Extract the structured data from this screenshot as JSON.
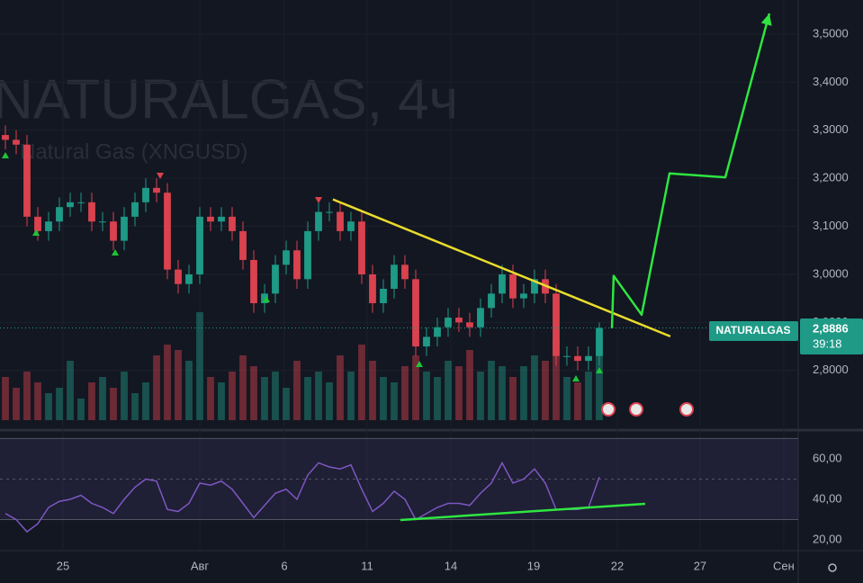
{
  "chart_data": [
    {
      "type": "candlestick",
      "watermark": [
        "NATURALGAS, 4ч",
        "Natural Gas (XNGUSD)"
      ],
      "symbol_tag": "NATURALGAS",
      "last_price_label": "2,8886",
      "countdown": "39:18",
      "up_color": "#1e9a86",
      "down_color": "#d9424e",
      "open": [
        3.29,
        3.28,
        3.27,
        3.12,
        3.09,
        3.11,
        3.14,
        3.15,
        3.15,
        3.11,
        3.11,
        3.07,
        3.12,
        3.15,
        3.18,
        3.17,
        3.01,
        2.98,
        3.0,
        3.12,
        3.11,
        3.12,
        3.09,
        3.03,
        2.94,
        2.96,
        3.02,
        3.05,
        2.99,
        3.09,
        3.13,
        3.13,
        3.09,
        3.11,
        3.0,
        2.94,
        2.97,
        3.02,
        2.99,
        2.85,
        2.87,
        2.89,
        2.91,
        2.9,
        2.89,
        2.93,
        2.96,
        3.0,
        2.95,
        2.96,
        2.99,
        2.96,
        2.83,
        2.83,
        2.82,
        2.83
      ],
      "high": [
        3.31,
        3.3,
        3.29,
        3.14,
        3.13,
        3.16,
        3.17,
        3.17,
        3.17,
        3.13,
        3.13,
        3.14,
        3.17,
        3.2,
        3.2,
        3.19,
        3.03,
        3.02,
        3.14,
        3.14,
        3.14,
        3.14,
        3.11,
        3.05,
        2.98,
        3.04,
        3.07,
        3.07,
        3.11,
        3.15,
        3.15,
        3.15,
        3.13,
        3.13,
        3.02,
        2.99,
        3.04,
        3.04,
        3.01,
        2.89,
        2.91,
        2.93,
        2.93,
        2.92,
        2.95,
        2.98,
        3.02,
        3.02,
        2.98,
        3.01,
        3.01,
        2.98,
        2.85,
        2.85,
        2.85,
        2.9
      ],
      "low": [
        3.26,
        3.25,
        3.1,
        3.07,
        3.07,
        3.09,
        3.12,
        3.13,
        3.09,
        3.09,
        3.05,
        3.05,
        3.1,
        3.13,
        3.15,
        2.99,
        2.96,
        2.96,
        2.98,
        3.09,
        3.09,
        3.07,
        3.01,
        2.92,
        2.92,
        2.94,
        3.0,
        2.97,
        2.97,
        3.07,
        3.11,
        3.07,
        3.07,
        2.98,
        2.92,
        2.92,
        2.95,
        2.97,
        2.83,
        2.83,
        2.85,
        2.87,
        2.88,
        2.87,
        2.87,
        2.91,
        2.94,
        2.93,
        2.93,
        2.94,
        2.94,
        2.81,
        2.81,
        2.8,
        2.8,
        2.81
      ],
      "close": [
        3.28,
        3.27,
        3.12,
        3.09,
        3.11,
        3.14,
        3.15,
        3.15,
        3.11,
        3.11,
        3.07,
        3.12,
        3.15,
        3.18,
        3.17,
        3.01,
        2.98,
        3.0,
        3.12,
        3.11,
        3.12,
        3.09,
        3.03,
        2.94,
        2.96,
        3.02,
        3.05,
        2.99,
        3.09,
        3.13,
        3.13,
        3.09,
        3.11,
        3.0,
        2.94,
        2.97,
        3.02,
        2.99,
        2.85,
        2.87,
        2.89,
        2.91,
        2.9,
        2.89,
        2.93,
        2.96,
        3.0,
        2.95,
        2.96,
        2.99,
        2.96,
        2.83,
        2.83,
        2.82,
        2.83,
        2.8886
      ],
      "volume": [
        40,
        30,
        45,
        35,
        25,
        30,
        55,
        20,
        35,
        40,
        30,
        45,
        25,
        35,
        60,
        70,
        65,
        55,
        100,
        40,
        35,
        45,
        60,
        50,
        40,
        45,
        30,
        55,
        40,
        45,
        35,
        60,
        45,
        70,
        55,
        40,
        35,
        50,
        60,
        45,
        40,
        55,
        50,
        65,
        45,
        55,
        50,
        40,
        50,
        60,
        55,
        75,
        40,
        35,
        45,
        80
      ],
      "vlim": [
        0,
        100
      ],
      "xlim": [
        -0.5,
        73.42
      ],
      "xticks": [
        {
          "value": 5.33,
          "label": "25"
        },
        {
          "value": 18,
          "label": "Авг"
        },
        {
          "value": 25.83,
          "label": "6"
        },
        {
          "value": 33.5,
          "label": "11"
        },
        {
          "value": 41.25,
          "label": "14"
        },
        {
          "value": 48.92,
          "label": "19"
        },
        {
          "value": 56.67,
          "label": "22"
        },
        {
          "value": 64.33,
          "label": "27"
        },
        {
          "value": 72.08,
          "label": "Сен"
        }
      ],
      "ylim": [
        2.691,
        3.571
      ],
      "yticks": [
        {
          "value": 2.8,
          "label": "2,8000"
        },
        {
          "value": 2.9,
          "label": "2,9000"
        },
        {
          "value": 3.0,
          "label": "3,0000"
        },
        {
          "value": 3.1,
          "label": "3,1000"
        },
        {
          "value": 3.2,
          "label": "3,2000"
        },
        {
          "value": 3.3,
          "label": "3,3000"
        },
        {
          "value": 3.4,
          "label": "3,4000"
        },
        {
          "value": 3.5,
          "label": "3,5000"
        }
      ],
      "grid": true,
      "annotations": [
        {
          "shape": "line",
          "color": "#e9dc2c",
          "x": [
            30.33,
            61.58
          ],
          "y": [
            3.156,
            2.871
          ]
        },
        {
          "shape": "arrow",
          "color": "#2ee640",
          "x": [
            56.17,
            56.33,
            58.92,
            61.5,
            66.67,
            70.75
          ],
          "y": [
            2.888,
            2.997,
            2.916,
            3.21,
            3.202,
            3.543
          ]
        }
      ]
    },
    {
      "type": "line",
      "color": "#7e57c2",
      "values": [
        33,
        30,
        24,
        28,
        36,
        39,
        40,
        42,
        38,
        36,
        33,
        40,
        46,
        50,
        49,
        35,
        34,
        38,
        48,
        47,
        49,
        45,
        38,
        31,
        37,
        43,
        45,
        40,
        52,
        58,
        56,
        55,
        57,
        45,
        34,
        38,
        44,
        40,
        30,
        33,
        36,
        38,
        38,
        37,
        43,
        48,
        58,
        48,
        50,
        55,
        48,
        35,
        35,
        35,
        36,
        51
      ],
      "xlim": [
        -0.5,
        73.42
      ],
      "ylim": [
        14.7,
        73.3
      ],
      "yticks": [
        {
          "value": 20,
          "label": "20,00"
        },
        {
          "value": 40,
          "label": "40,00"
        },
        {
          "value": 60,
          "label": "60,00"
        }
      ],
      "levels": [
        70,
        50,
        30
      ],
      "annotations": [
        {
          "shape": "line",
          "color": "#2ee640",
          "x": [
            36.58,
            59.25
          ],
          "y": [
            29.8,
            37.8
          ]
        }
      ]
    }
  ]
}
